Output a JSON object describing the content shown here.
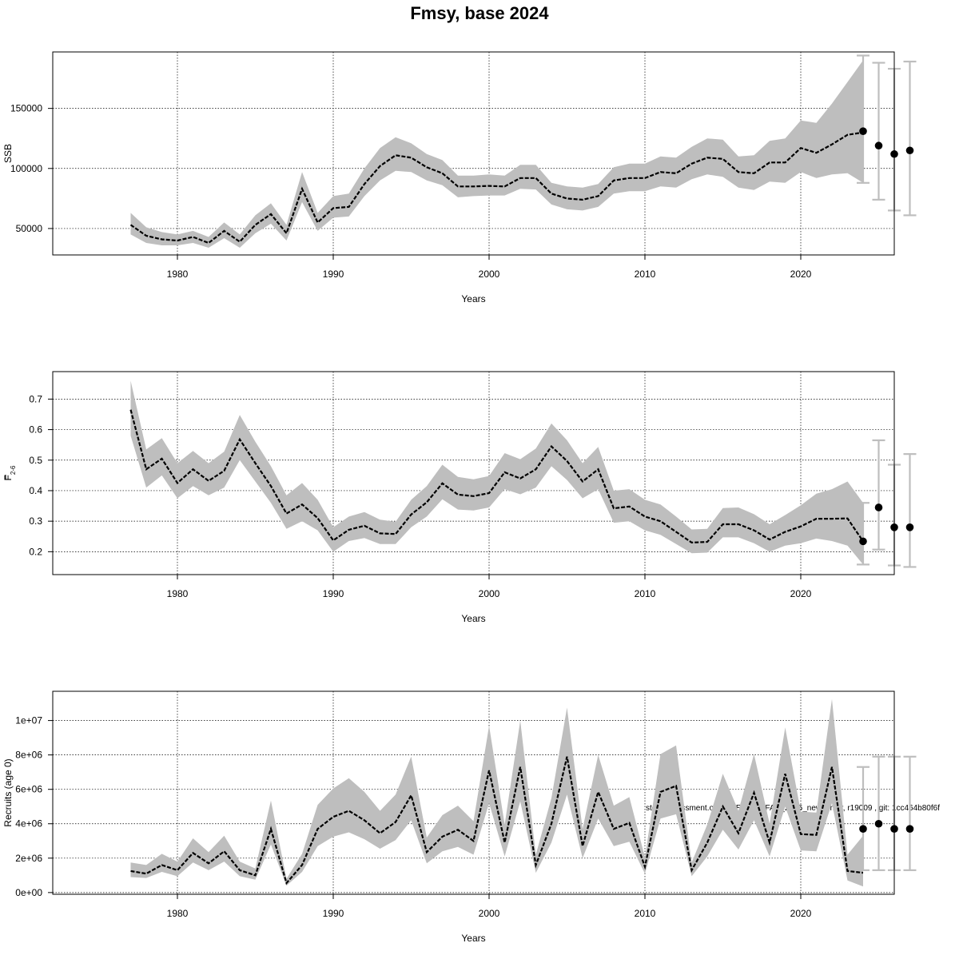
{
  "title": "Fmsy, base 2024",
  "note": "stockassessment.org, GoR_WGBFAS_2025_new_cnstr, r19009 , git: 1cc464b80f6f",
  "colors": {
    "band": "#bebebe",
    "line": "#000000",
    "grid": "#000000",
    "errorbar": "#bebebe",
    "point": "#000000"
  },
  "chart_data": [
    {
      "type": "line",
      "panel": "ssb",
      "xlabel": "Years",
      "ylabel": "SSB",
      "ylabel_sub": "",
      "xlim": [
        1972,
        2026
      ],
      "ylim": [
        28000,
        197000
      ],
      "xticks": [
        1980,
        1990,
        2000,
        2010,
        2020
      ],
      "yticks": [
        50000,
        100000,
        150000
      ],
      "ytick_labels": [
        "50000",
        "100000",
        "150000"
      ],
      "grid": true,
      "series": [
        {
          "x": [
            1977,
            1978,
            1979,
            1980,
            1981,
            1982,
            1983,
            1984,
            1985,
            1986,
            1987,
            1988,
            1989,
            1990,
            1991,
            1992,
            1993,
            1994,
            1995,
            1996,
            1997,
            1998,
            1999,
            2000,
            2001,
            2002,
            2003,
            2004,
            2005,
            2006,
            2007,
            2008,
            2009,
            2010,
            2011,
            2012,
            2013,
            2014,
            2015,
            2016,
            2017,
            2018,
            2019,
            2020,
            2021,
            2022,
            2023,
            2024
          ],
          "y": [
            53000,
            44000,
            41000,
            40000,
            43000,
            38000,
            48000,
            39000,
            53000,
            62000,
            46000,
            83000,
            55000,
            67000,
            68000,
            87000,
            102000,
            111000,
            109000,
            101000,
            96000,
            85000,
            85000,
            85500,
            85000,
            92000,
            92000,
            79000,
            75000,
            74000,
            77000,
            90000,
            92000,
            92000,
            97000,
            96000,
            104000,
            109000,
            108000,
            97000,
            96000,
            105000,
            105000,
            117000,
            113000,
            120000,
            128000,
            130000
          ],
          "lower": [
            45000,
            38000,
            36000,
            36000,
            38000,
            34000,
            42000,
            34000,
            46000,
            54000,
            40000,
            72000,
            48000,
            59000,
            60000,
            77000,
            90000,
            98000,
            97000,
            90000,
            86000,
            76000,
            77000,
            77500,
            77500,
            83000,
            82500,
            70000,
            66000,
            65000,
            68000,
            79000,
            81000,
            81000,
            85000,
            84000,
            91000,
            95000,
            93000,
            84000,
            82000,
            89000,
            88000,
            97000,
            92000,
            95000,
            96000,
            88000
          ],
          "upper": [
            63000,
            51000,
            47000,
            45000,
            48000,
            43000,
            55000,
            45000,
            61000,
            71000,
            53000,
            97000,
            63000,
            77000,
            79000,
            100000,
            117000,
            126000,
            121000,
            112000,
            107000,
            94000,
            94000,
            95000,
            94000,
            103000,
            103000,
            88000,
            85000,
            84000,
            87000,
            101000,
            104000,
            104000,
            110000,
            109000,
            118000,
            125000,
            124000,
            110000,
            111000,
            123000,
            125000,
            140000,
            138000,
            154000,
            172000,
            190000
          ]
        }
      ],
      "forecast": {
        "x": [
          2024,
          2025,
          2026,
          2027
        ],
        "y": [
          131000,
          119000,
          112000,
          115000
        ],
        "low": [
          88000,
          74000,
          65000,
          61000
        ],
        "high": [
          194000,
          188000,
          183000,
          189000
        ]
      }
    },
    {
      "type": "line",
      "panel": "fbar",
      "xlabel": "Years",
      "ylabel": "F",
      "ylabel_sub": "2-6",
      "xlim": [
        1972,
        2026
      ],
      "ylim": [
        0.125,
        0.79
      ],
      "xticks": [
        1980,
        1990,
        2000,
        2010,
        2020
      ],
      "yticks": [
        0.2,
        0.3,
        0.4,
        0.5,
        0.6,
        0.7
      ],
      "ytick_labels": [
        "0.2",
        "0.3",
        "0.4",
        "0.5",
        "0.6",
        "0.7"
      ],
      "grid": true,
      "series": [
        {
          "x": [
            1977,
            1978,
            1979,
            1980,
            1981,
            1982,
            1983,
            1984,
            1985,
            1986,
            1987,
            1988,
            1989,
            1990,
            1991,
            1992,
            1993,
            1994,
            1995,
            1996,
            1997,
            1998,
            1999,
            2000,
            2001,
            2002,
            2003,
            2004,
            2005,
            2006,
            2007,
            2008,
            2009,
            2010,
            2011,
            2012,
            2013,
            2014,
            2015,
            2016,
            2017,
            2018,
            2019,
            2020,
            2021,
            2022,
            2023,
            2024
          ],
          "y": [
            0.665,
            0.47,
            0.505,
            0.425,
            0.47,
            0.432,
            0.465,
            0.568,
            0.49,
            0.415,
            0.325,
            0.355,
            0.31,
            0.237,
            0.272,
            0.285,
            0.26,
            0.258,
            0.322,
            0.362,
            0.424,
            0.387,
            0.382,
            0.392,
            0.46,
            0.44,
            0.47,
            0.545,
            0.497,
            0.43,
            0.47,
            0.342,
            0.348,
            0.315,
            0.3,
            0.265,
            0.23,
            0.232,
            0.29,
            0.29,
            0.27,
            0.24,
            0.265,
            0.283,
            0.308,
            0.308,
            0.309,
            0.234
          ],
          "lower": [
            0.58,
            0.41,
            0.45,
            0.375,
            0.415,
            0.385,
            0.41,
            0.5,
            0.43,
            0.36,
            0.275,
            0.3,
            0.27,
            0.2,
            0.235,
            0.245,
            0.225,
            0.225,
            0.28,
            0.315,
            0.372,
            0.338,
            0.335,
            0.345,
            0.405,
            0.388,
            0.41,
            0.48,
            0.435,
            0.375,
            0.405,
            0.295,
            0.3,
            0.27,
            0.255,
            0.225,
            0.195,
            0.197,
            0.247,
            0.247,
            0.228,
            0.2,
            0.22,
            0.228,
            0.243,
            0.235,
            0.22,
            0.158
          ],
          "upper": [
            0.76,
            0.535,
            0.572,
            0.49,
            0.53,
            0.49,
            0.528,
            0.648,
            0.56,
            0.48,
            0.385,
            0.425,
            0.37,
            0.28,
            0.315,
            0.33,
            0.305,
            0.298,
            0.37,
            0.415,
            0.485,
            0.445,
            0.437,
            0.448,
            0.523,
            0.503,
            0.538,
            0.62,
            0.565,
            0.49,
            0.543,
            0.4,
            0.405,
            0.37,
            0.355,
            0.315,
            0.273,
            0.275,
            0.343,
            0.345,
            0.323,
            0.29,
            0.32,
            0.352,
            0.39,
            0.405,
            0.43,
            0.36
          ]
        }
      ],
      "forecast": {
        "x": [
          2024,
          2025,
          2026,
          2027
        ],
        "y": [
          0.234,
          0.345,
          0.28,
          0.28
        ],
        "low": [
          0.158,
          0.207,
          0.155,
          0.15
        ],
        "high": [
          0.36,
          0.565,
          0.485,
          0.52
        ]
      }
    },
    {
      "type": "line",
      "panel": "recruits",
      "xlabel": "Years",
      "ylabel": "Recruits (age 0)",
      "ylabel_sub": "",
      "xlim": [
        1972,
        2026
      ],
      "ylim": [
        -100000,
        11700000
      ],
      "xticks": [
        1980,
        1990,
        2000,
        2010,
        2020
      ],
      "yticks": [
        0,
        2000000,
        4000000,
        6000000,
        8000000,
        10000000
      ],
      "ytick_labels": [
        "0e+00",
        "2e+06",
        "4e+06",
        "6e+06",
        "8e+06",
        "1e+07"
      ],
      "grid": true,
      "series": [
        {
          "x": [
            1977,
            1978,
            1979,
            1980,
            1981,
            1982,
            1983,
            1984,
            1985,
            1986,
            1987,
            1988,
            1989,
            1990,
            1991,
            1992,
            1993,
            1994,
            1995,
            1996,
            1997,
            1998,
            1999,
            2000,
            2001,
            2002,
            2003,
            2004,
            2005,
            2006,
            2007,
            2008,
            2009,
            2010,
            2011,
            2012,
            2013,
            2014,
            2015,
            2016,
            2017,
            2018,
            2019,
            2020,
            2021,
            2022,
            2023,
            2024
          ],
          "y": [
            1250000,
            1100000,
            1600000,
            1300000,
            2300000,
            1700000,
            2400000,
            1300000,
            1000000,
            3700000,
            550000,
            1600000,
            3700000,
            4400000,
            4750000,
            4200000,
            3450000,
            4100000,
            5650000,
            2350000,
            3250000,
            3650000,
            3000000,
            7100000,
            2900000,
            7300000,
            1600000,
            4000000,
            7900000,
            2700000,
            5850000,
            3700000,
            4050000,
            1500000,
            5850000,
            6200000,
            1300000,
            2900000,
            5000000,
            3450000,
            5800000,
            2900000,
            6900000,
            3400000,
            3350000,
            7300000,
            1250000,
            1150000
          ],
          "lower": [
            900000,
            850000,
            1200000,
            950000,
            1750000,
            1300000,
            1800000,
            950000,
            750000,
            2800000,
            400000,
            1200000,
            2700000,
            3250000,
            3500000,
            3100000,
            2550000,
            3050000,
            4200000,
            1700000,
            2400000,
            2650000,
            2200000,
            5200000,
            2100000,
            5300000,
            1150000,
            2900000,
            5700000,
            2000000,
            4300000,
            2700000,
            2950000,
            1100000,
            4300000,
            4550000,
            950000,
            2100000,
            3650000,
            2500000,
            4200000,
            2100000,
            5000000,
            2450000,
            2400000,
            5200000,
            700000,
            350000
          ],
          "upper": [
            1750000,
            1600000,
            2250000,
            1800000,
            3150000,
            2350000,
            3300000,
            1800000,
            1400000,
            5350000,
            800000,
            2250000,
            5100000,
            6050000,
            6650000,
            5850000,
            4750000,
            5700000,
            7900000,
            3200000,
            4500000,
            5050000,
            4150000,
            9700000,
            3950000,
            10000000,
            2200000,
            5500000,
            10750000,
            3700000,
            8000000,
            5050000,
            5550000,
            2050000,
            8050000,
            8550000,
            1750000,
            3950000,
            6900000,
            4750000,
            8050000,
            4000000,
            9600000,
            4700000,
            4650000,
            11250000,
            2200000,
            3300000
          ]
        }
      ],
      "forecast": {
        "x": [
          2024,
          2025,
          2026,
          2027
        ],
        "y": [
          3700000,
          4000000,
          3700000,
          3700000
        ],
        "low": [
          1300000,
          1300000,
          1300000,
          1300000
        ],
        "high": [
          7300000,
          7900000,
          7900000,
          7900000
        ]
      }
    }
  ]
}
